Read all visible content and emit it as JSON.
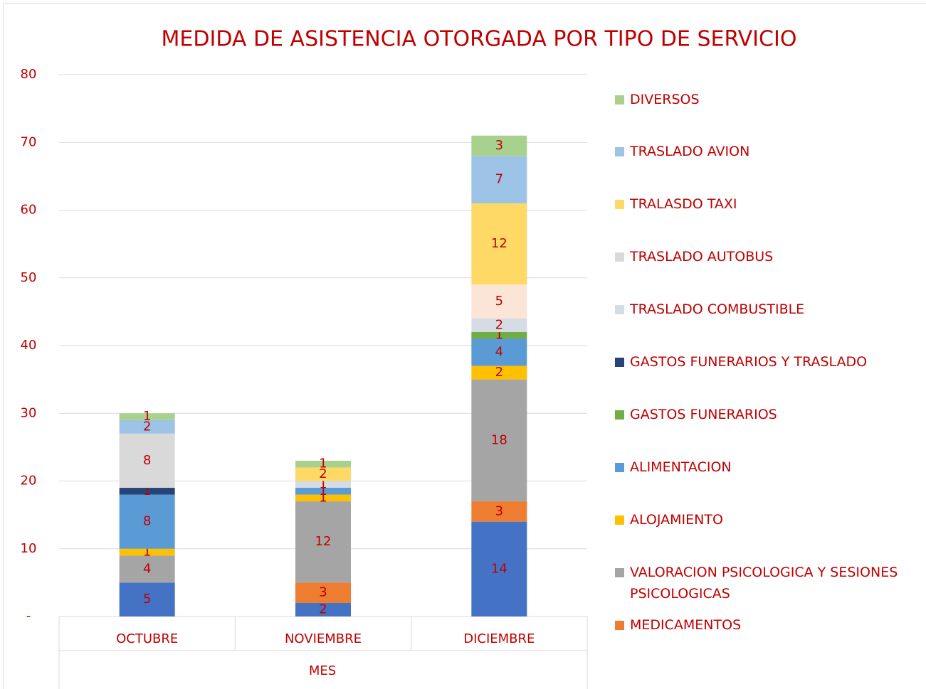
{
  "chart_data": {
    "type": "stacked_bar",
    "title": "MEDIDA DE ASISTENCIA OTORGADA POR TIPO DE SERVICIO",
    "x_label": "MES",
    "categories": [
      "OCTUBRE",
      "NOVIEMBRE",
      "DICIEMBRE"
    ],
    "series": [
      {
        "name": null,
        "color": "#4472c4",
        "values": [
          5,
          2,
          14
        ]
      },
      {
        "name": "MEDICAMENTOS",
        "color": "#ed7d31",
        "values": [
          0,
          3,
          3
        ]
      },
      {
        "name": "VALORACION PSICOLOGICA Y SESIONES PSICOLOGICAS",
        "color": "#a5a5a5",
        "values": [
          4,
          12,
          18
        ]
      },
      {
        "name": "ALOJAMIENTO",
        "color": "#ffc000",
        "values": [
          1,
          1,
          2
        ]
      },
      {
        "name": "ALIMENTACION",
        "color": "#5b9bd5",
        "values": [
          8,
          1,
          4
        ]
      },
      {
        "name": "GASTOS FUNERARIOS",
        "color": "#70ad47",
        "values": [
          0,
          0,
          1
        ]
      },
      {
        "name": "GASTOS FUNERARIOS Y TRASLADO",
        "color": "#264478",
        "values": [
          1,
          0,
          0
        ]
      },
      {
        "name": "TRASLADO COMBUSTIBLE",
        "color": "#d6dce4",
        "values": [
          0,
          1,
          2
        ]
      },
      {
        "name": null,
        "color": "#fbe5d6",
        "values": [
          0,
          0,
          5
        ]
      },
      {
        "name": "TRASLADO AUTOBUS",
        "color": "#d9d9d9",
        "values": [
          8,
          0,
          0
        ]
      },
      {
        "name": "TRALASDO TAXI",
        "color": "#ffd966",
        "values": [
          0,
          2,
          12
        ]
      },
      {
        "name": "TRASLADO AVION",
        "color": "#9dc3e6",
        "values": [
          2,
          0,
          7
        ]
      },
      {
        "name": "DIVERSOS",
        "color": "#a9d18e",
        "values": [
          1,
          1,
          3
        ]
      }
    ],
    "ylim": [
      0,
      80
    ],
    "yticks": [
      {
        "value": 0,
        "label": "-"
      },
      10,
      20,
      30,
      40,
      50,
      60,
      70,
      80
    ],
    "grid": true
  }
}
